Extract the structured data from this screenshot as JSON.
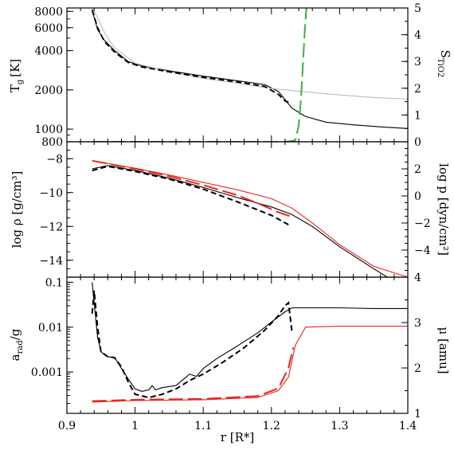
{
  "chart_data": [
    {
      "type": "line",
      "panel": "top",
      "ylabel_left": "T",
      "ylabel_left_sub": "g",
      "ylabel_left_unit": "[K]",
      "ylabel_right": "S",
      "ylabel_right_sub": "TiO2",
      "ylabel_right_color": "#3cb043",
      "y_left_scale": "log",
      "y_left_lim": [
        800,
        8500
      ],
      "y_left_ticks": [
        800,
        1000,
        2000,
        4000,
        6000,
        8000
      ],
      "y_left_tick_labels": [
        "800",
        "1000",
        "2000",
        "4000",
        "6000",
        "8000"
      ],
      "y_right_lim": [
        0,
        5
      ],
      "y_right_ticks": [
        0,
        1,
        2,
        3,
        4,
        5
      ],
      "series": [
        {
          "style": "solid",
          "color": "#000000",
          "axis": "left",
          "x": [
            0.937,
            0.945,
            0.955,
            0.97,
            0.99,
            1.01,
            1.05,
            1.1,
            1.15,
            1.19,
            1.21,
            1.23,
            1.25,
            1.28,
            1.32,
            1.36,
            1.4
          ],
          "y": [
            8200,
            5800,
            4800,
            4000,
            3300,
            3050,
            2800,
            2550,
            2350,
            2200,
            1950,
            1450,
            1250,
            1130,
            1080,
            1040,
            1010
          ]
        },
        {
          "style": "solid",
          "color": "#bbbbbb",
          "axis": "left",
          "x": [
            0.937,
            0.945,
            0.955,
            0.97,
            1.0,
            1.05,
            1.1,
            1.15,
            1.2,
            1.25,
            1.3,
            1.35,
            1.4
          ],
          "y": [
            8500,
            7200,
            5500,
            4200,
            3200,
            2750,
            2450,
            2250,
            2050,
            1930,
            1830,
            1750,
            1700
          ]
        },
        {
          "style": "dashed",
          "color": "#000000",
          "axis": "left",
          "x": [
            0.937,
            0.945,
            0.955,
            0.97,
            0.99,
            1.01,
            1.05,
            1.1,
            1.15,
            1.19,
            1.21,
            1.22,
            1.225
          ],
          "y": [
            8200,
            6000,
            4700,
            3900,
            3250,
            3000,
            2750,
            2500,
            2300,
            2130,
            1850,
            1650,
            1600
          ]
        },
        {
          "style": "longdash",
          "color": "#3cb043",
          "axis": "right",
          "x": [
            0.937,
            1.1,
            1.22,
            1.235,
            1.24,
            1.243,
            1.246,
            1.249,
            1.252
          ],
          "y": [
            0,
            0,
            0,
            0.05,
            0.6,
            1.5,
            2.8,
            4.2,
            5.2
          ]
        }
      ]
    },
    {
      "type": "line",
      "panel": "middle",
      "ylabel_left": "log ρ [g/cm³]",
      "ylabel_right": "log p [dyn/cm²]",
      "ylabel_right_color": "#e8271c",
      "y_left_lim": [
        -15,
        -7
      ],
      "y_left_ticks": [
        -14,
        -12,
        -10,
        -8
      ],
      "y_right_lim": [
        -6,
        4
      ],
      "y_right_ticks": [
        -4,
        -2,
        0,
        2
      ],
      "series": [
        {
          "style": "solid",
          "color": "#000000",
          "axis": "left",
          "x": [
            0.937,
            0.96,
            1.0,
            1.05,
            1.1,
            1.15,
            1.2,
            1.23,
            1.26,
            1.3,
            1.35,
            1.37
          ],
          "y": [
            -8.6,
            -8.4,
            -8.7,
            -9.15,
            -9.7,
            -10.3,
            -10.85,
            -11.3,
            -12.0,
            -13.2,
            -14.5,
            -15.0
          ]
        },
        {
          "style": "dashed",
          "color": "#000000",
          "axis": "left",
          "x": [
            0.937,
            0.96,
            1.0,
            1.05,
            1.1,
            1.15,
            1.2,
            1.225
          ],
          "y": [
            -8.7,
            -8.45,
            -8.75,
            -9.2,
            -9.8,
            -10.55,
            -11.35,
            -11.9
          ]
        },
        {
          "style": "solid",
          "color": "#e8271c",
          "axis": "right",
          "x": [
            0.937,
            1.0,
            1.05,
            1.1,
            1.15,
            1.2,
            1.23,
            1.26,
            1.3,
            1.35,
            1.4
          ],
          "y": [
            2.6,
            2.05,
            1.55,
            1.0,
            0.45,
            -0.2,
            -0.9,
            -2.0,
            -3.6,
            -5.2,
            -6.0
          ]
        },
        {
          "style": "longdash",
          "color": "#e8271c",
          "axis": "right",
          "x": [
            0.937,
            1.0,
            1.05,
            1.1,
            1.15,
            1.18,
            1.21,
            1.23
          ],
          "y": [
            2.6,
            2.0,
            1.45,
            0.8,
            0.05,
            -0.55,
            -1.2,
            -1.55
          ]
        }
      ]
    },
    {
      "type": "line",
      "panel": "bottom",
      "ylabel_left": "a",
      "ylabel_left_sub": "rad",
      "ylabel_left_tail": "/g",
      "ylabel_right": "μ [amu]",
      "ylabel_right_color": "#e8271c",
      "y_left_scale": "log",
      "y_left_lim": [
        0.00012,
        0.13
      ],
      "y_left_ticks": [
        0.001,
        0.01,
        0.1
      ],
      "y_left_tick_labels": [
        "0.001",
        "0.01",
        "0.1"
      ],
      "y_right_lim": [
        1,
        4
      ],
      "y_right_ticks": [
        1,
        2,
        3,
        4
      ],
      "xlabel": "r [R*]",
      "xlim": [
        0.9,
        1.4
      ],
      "xticks": [
        0.9,
        1.0,
        1.1,
        1.2,
        1.3,
        1.4
      ],
      "xtick_labels": [
        "0.9",
        "1",
        "1.1",
        "1.2",
        "1.3",
        "1.4"
      ],
      "series": [
        {
          "style": "solid",
          "color": "#000000",
          "axis": "left",
          "x": [
            0.937,
            0.945,
            0.95,
            0.96,
            0.97,
            0.98,
            0.99,
            1.0,
            1.01,
            1.02,
            1.025,
            1.03,
            1.04,
            1.06,
            1.08,
            1.09,
            1.1,
            1.12,
            1.15,
            1.18,
            1.2,
            1.22,
            1.23,
            1.25,
            1.3,
            1.35,
            1.4
          ],
          "y": [
            0.1,
            0.006,
            0.0028,
            0.0022,
            0.0021,
            0.0012,
            0.0007,
            0.00042,
            0.00037,
            0.0004,
            0.0005,
            0.0004,
            0.00045,
            0.0005,
            0.0009,
            0.0008,
            0.0012,
            0.002,
            0.0038,
            0.0075,
            0.013,
            0.022,
            0.027,
            0.027,
            0.027,
            0.026,
            0.026
          ]
        },
        {
          "style": "dashed",
          "color": "#000000",
          "axis": "left",
          "x": [
            0.937,
            0.94,
            0.945,
            0.95,
            0.96,
            0.97,
            0.98,
            0.99,
            1.0,
            1.02,
            1.04,
            1.06,
            1.08,
            1.1,
            1.13,
            1.16,
            1.19,
            1.21,
            1.22,
            1.225,
            1.23
          ],
          "y": [
            0.02,
            0.065,
            0.01,
            0.0028,
            0.0022,
            0.0021,
            0.0013,
            0.0006,
            0.00032,
            0.00027,
            0.00032,
            0.00042,
            0.00065,
            0.0009,
            0.0017,
            0.0035,
            0.0085,
            0.018,
            0.03,
            0.035,
            0.008
          ]
        },
        {
          "style": "solid",
          "color": "#e8271c",
          "axis": "right",
          "x": [
            0.937,
            1.0,
            1.1,
            1.18,
            1.21,
            1.225,
            1.235,
            1.25,
            1.3,
            1.35,
            1.4
          ],
          "y": [
            1.25,
            1.28,
            1.3,
            1.35,
            1.5,
            1.8,
            2.5,
            2.9,
            2.92,
            2.92,
            2.92
          ]
        },
        {
          "style": "longdash",
          "color": "#e8271c",
          "axis": "right",
          "x": [
            0.937,
            1.0,
            1.1,
            1.18,
            1.21,
            1.225,
            1.232
          ],
          "y": [
            1.27,
            1.3,
            1.32,
            1.38,
            1.55,
            2.0,
            2.45
          ]
        }
      ]
    }
  ]
}
